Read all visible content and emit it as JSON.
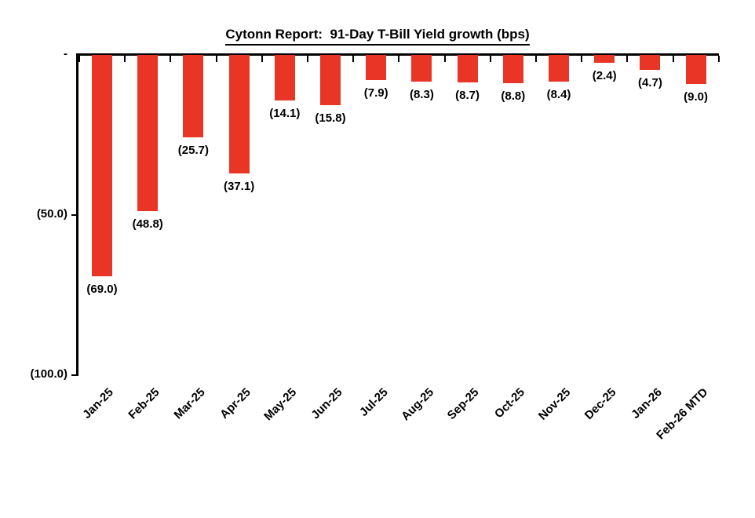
{
  "chart_data": {
    "type": "bar",
    "title": "Cytonn Report:  91-Day T-Bill Yield growth (bps)",
    "categories": [
      "Jan-25",
      "Feb-25",
      "Mar-25",
      "Apr-25",
      "May-25",
      "Jun-25",
      "Jul-25",
      "Aug-25",
      "Sep-25",
      "Oct-25",
      "Nov-25",
      "Dec-25",
      "Jan-26",
      "Feb-26 MTD"
    ],
    "values": [
      -69.0,
      -48.8,
      -25.7,
      -37.1,
      -14.1,
      -15.8,
      -7.9,
      -8.3,
      -8.7,
      -8.8,
      -8.4,
      -2.4,
      -4.7,
      -9.0
    ],
    "data_labels": [
      "(69.0)",
      "(48.8)",
      "(25.7)",
      "(37.1)",
      "(14.1)",
      "(15.8)",
      "(7.9)",
      "(8.3)",
      "(8.7)",
      "(8.8)",
      "(8.4)",
      "(2.4)",
      "(4.7)",
      "(9.0)"
    ],
    "xlabel": "",
    "ylabel": "",
    "ylim": [
      0,
      -100
    ],
    "y_axis_ticks": [
      {
        "label": "-",
        "value": 0
      },
      {
        "label": "(50.0)",
        "value": -50
      },
      {
        "label": "(100.0)",
        "value": -100
      }
    ],
    "x_label_rotation_deg": 45,
    "bar_color": "#E93526",
    "axis_color": "#000000",
    "text_color": "#000000",
    "grid": false,
    "legend": false
  }
}
